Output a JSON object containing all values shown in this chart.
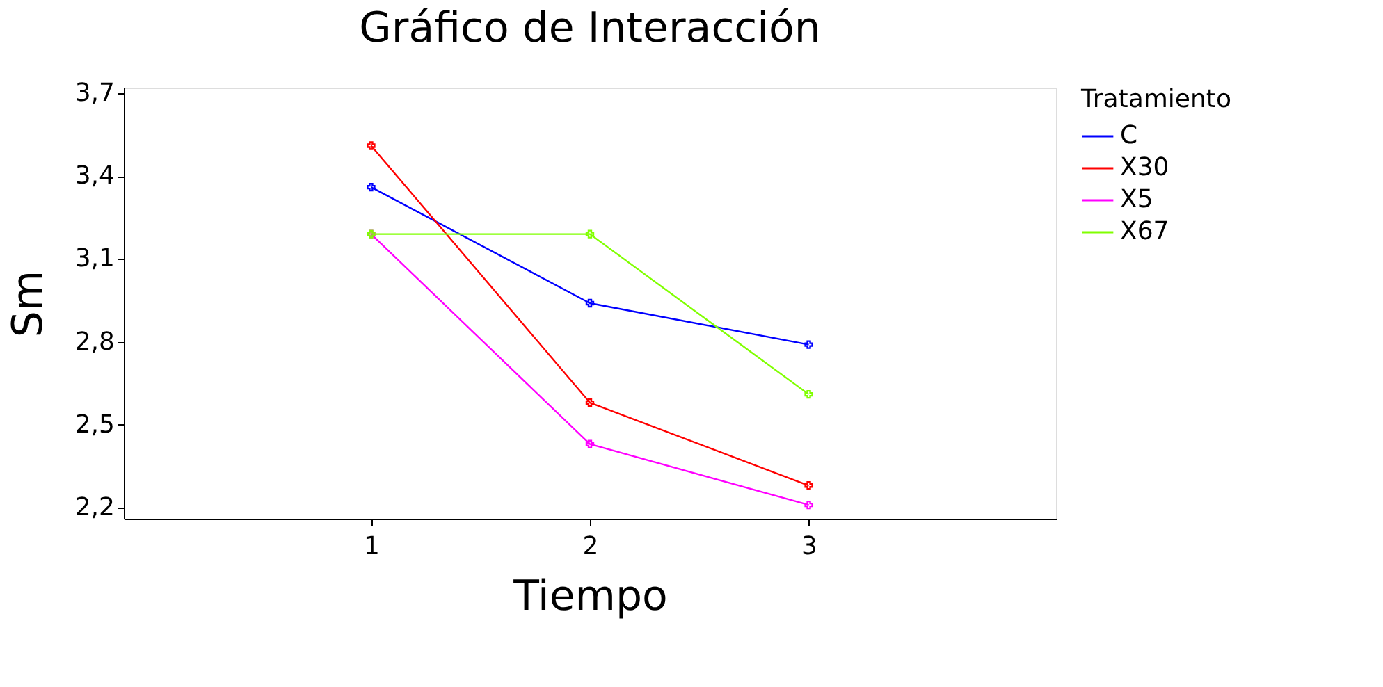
{
  "chart_data": {
    "type": "line",
    "title": "Gráfico de Interacción",
    "xlabel": "Tiempo",
    "ylabel": "Sm",
    "legend_title": "Tratamiento",
    "x": [
      1,
      2,
      3
    ],
    "series": [
      {
        "name": "C",
        "color": "#0000ff",
        "values": [
          3.36,
          2.94,
          2.79
        ]
      },
      {
        "name": "X30",
        "color": "#ff0000",
        "values": [
          3.51,
          2.58,
          2.28
        ]
      },
      {
        "name": "X5",
        "color": "#ff00ff",
        "values": [
          3.19,
          2.43,
          2.21
        ]
      },
      {
        "name": "X67",
        "color": "#80ff00",
        "values": [
          3.19,
          3.19,
          2.61
        ]
      }
    ],
    "xlim": [
      -0.13,
      4.13
    ],
    "xticks": [
      1,
      2,
      3
    ],
    "ylim": [
      2.16,
      3.72
    ],
    "yticks": [
      {
        "value": 2.2,
        "label": "2,2"
      },
      {
        "value": 2.5,
        "label": "2,5"
      },
      {
        "value": 2.8,
        "label": "2,8"
      },
      {
        "value": 3.1,
        "label": "3,1"
      },
      {
        "value": 3.4,
        "label": "3,4"
      },
      {
        "value": 3.7,
        "label": "3,7"
      }
    ],
    "grid": false,
    "legend": "top right",
    "marker": "cross",
    "line_style": "solid"
  }
}
